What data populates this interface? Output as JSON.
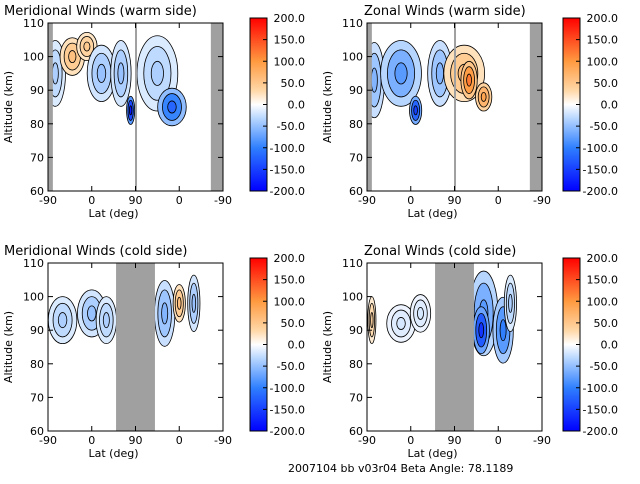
{
  "footer": {
    "caption": "2007104 bb v03r04   Beta Angle: 78.1189"
  },
  "colors": {
    "gap": "#a0a0a0",
    "axis": "#000000"
  },
  "chart_data": [
    {
      "type": "heatmap",
      "title": "Meridional Winds (warm side)",
      "xlabel": "Lat (deg)",
      "ylabel": "Altitude (km)",
      "xticks": [
        "-90",
        "0",
        "90",
        "0",
        "-90"
      ],
      "yticks": [
        60,
        70,
        80,
        90,
        100,
        110
      ],
      "ylim": [
        60,
        110
      ],
      "colorbar": {
        "range": [
          -200,
          200
        ],
        "ticks": [
          "200.0",
          "150.0",
          "100.0",
          "50.0",
          "0.0",
          "-50.0",
          "-100.0",
          "-150.0",
          "-200.0"
        ]
      },
      "grey_columns_lat": [
        [
          -90,
          -80
        ],
        [
          89,
          90
        ],
        [
          -65,
          -90
        ]
      ],
      "regions": [
        {
          "lat": -75,
          "alt": 95,
          "value": -40,
          "w": 10,
          "h": 14
        },
        {
          "lat": -40,
          "alt": 100,
          "value": 60,
          "w": 12,
          "h": 8
        },
        {
          "lat": -10,
          "alt": 103,
          "value": 50,
          "w": 10,
          "h": 6
        },
        {
          "lat": 20,
          "alt": 95,
          "value": -50,
          "w": 14,
          "h": 12
        },
        {
          "lat": 60,
          "alt": 95,
          "value": -50,
          "w": 10,
          "h": 14
        },
        {
          "lat": 80,
          "alt": 84,
          "value": -180,
          "w": 4,
          "h": 6
        },
        {
          "lat": 135,
          "alt": 95,
          "value": -40,
          "w": 20,
          "h": 16
        },
        {
          "lat": 165,
          "alt": 85,
          "value": -120,
          "w": 14,
          "h": 8
        }
      ]
    },
    {
      "type": "heatmap",
      "title": "Zonal Winds (warm side)",
      "xlabel": "Lat (deg)",
      "ylabel": "Altitude (km)",
      "xticks": [
        "-90",
        "0",
        "90",
        "0",
        "-90"
      ],
      "yticks": [
        60,
        70,
        80,
        90,
        100,
        110
      ],
      "ylim": [
        60,
        110
      ],
      "colorbar": {
        "range": [
          -200,
          200
        ],
        "ticks": [
          "200.0",
          "150.0",
          "100.0",
          "50.0",
          "0.0",
          "-50.0",
          "-100.0",
          "-150.0",
          "-200.0"
        ]
      },
      "grey_columns_lat": [
        [
          -90,
          -80
        ],
        [
          89,
          90
        ],
        [
          -65,
          -90
        ]
      ],
      "regions": [
        {
          "lat": -75,
          "alt": 93,
          "value": -60,
          "w": 10,
          "h": 16
        },
        {
          "lat": -20,
          "alt": 95,
          "value": -80,
          "w": 20,
          "h": 14
        },
        {
          "lat": 10,
          "alt": 84,
          "value": -150,
          "w": 6,
          "h": 6
        },
        {
          "lat": 60,
          "alt": 95,
          "value": -60,
          "w": 12,
          "h": 14
        },
        {
          "lat": 110,
          "alt": 95,
          "value": 60,
          "w": 20,
          "h": 12
        },
        {
          "lat": 120,
          "alt": 93,
          "value": 120,
          "w": 8,
          "h": 8
        },
        {
          "lat": 150,
          "alt": 88,
          "value": 90,
          "w": 8,
          "h": 6
        }
      ]
    },
    {
      "type": "heatmap",
      "title": "Meridional Winds (cold side)",
      "xlabel": "Lat (deg)",
      "ylabel": "Altitude (km)",
      "xticks": [
        "-90",
        "0",
        "90",
        "0",
        "-90"
      ],
      "yticks": [
        60,
        70,
        80,
        90,
        100,
        110
      ],
      "ylim": [
        60,
        110
      ],
      "colorbar": {
        "range": [
          -200,
          200
        ],
        "ticks": [
          "200.0",
          "150.0",
          "100.0",
          "50.0",
          "0.0",
          "-50.0",
          "-100.0",
          "-150.0",
          "-200.0"
        ]
      },
      "grey_columns_lat": [
        [
          50,
          90
        ],
        [
          90,
          130
        ]
      ],
      "regions": [
        {
          "lat": -60,
          "alt": 93,
          "value": -40,
          "w": 14,
          "h": 10
        },
        {
          "lat": 0,
          "alt": 95,
          "value": -50,
          "w": 14,
          "h": 10
        },
        {
          "lat": 30,
          "alt": 93,
          "value": -40,
          "w": 10,
          "h": 10
        },
        {
          "lat": 150,
          "alt": 95,
          "value": -60,
          "w": 10,
          "h": 14
        },
        {
          "lat": 180,
          "alt": 98,
          "value": 60,
          "w": 6,
          "h": 8
        },
        {
          "lat": 210,
          "alt": 98,
          "value": -50,
          "w": 6,
          "h": 12
        }
      ]
    },
    {
      "type": "heatmap",
      "title": "Zonal Winds (cold side)",
      "xlabel": "Lat (deg)",
      "ylabel": "Altitude (km)",
      "xticks": [
        "-90",
        "0",
        "90",
        "0",
        "-90"
      ],
      "yticks": [
        60,
        70,
        80,
        90,
        100,
        110
      ],
      "ylim": [
        60,
        110
      ],
      "colorbar": {
        "range": [
          -200,
          200
        ],
        "ticks": [
          "200.0",
          "150.0",
          "100.0",
          "50.0",
          "0.0",
          "-50.0",
          "-100.0",
          "-150.0",
          "-200.0"
        ]
      },
      "grey_columns_lat": [
        [
          50,
          90
        ],
        [
          90,
          130
        ]
      ],
      "regions": [
        {
          "lat": -80,
          "alt": 93,
          "value": 40,
          "w": 4,
          "h": 10
        },
        {
          "lat": -20,
          "alt": 92,
          "value": -20,
          "w": 14,
          "h": 8
        },
        {
          "lat": 20,
          "alt": 95,
          "value": -20,
          "w": 10,
          "h": 8
        },
        {
          "lat": 150,
          "alt": 95,
          "value": -80,
          "w": 14,
          "h": 18
        },
        {
          "lat": 145,
          "alt": 90,
          "value": -160,
          "w": 8,
          "h": 10
        },
        {
          "lat": 190,
          "alt": 90,
          "value": -100,
          "w": 10,
          "h": 14
        },
        {
          "lat": 205,
          "alt": 98,
          "value": -40,
          "w": 6,
          "h": 12
        }
      ]
    }
  ]
}
